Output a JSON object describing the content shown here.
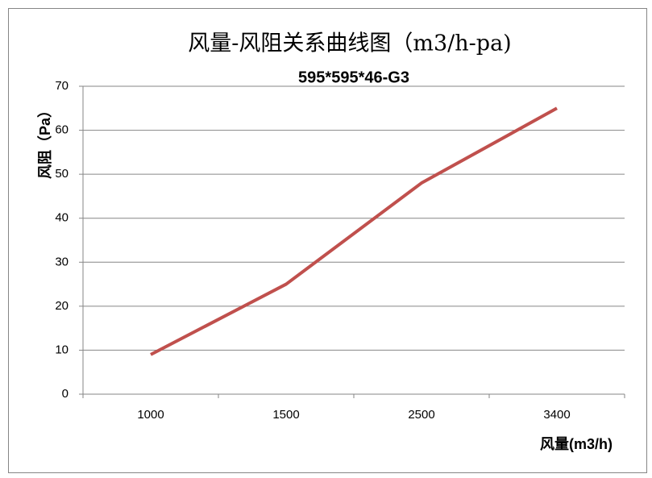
{
  "chart_data": {
    "type": "line",
    "title": "风量-风阻关系曲线图（m3/h-pa)",
    "subtitle": "595*595*46-G3",
    "x_label": "风量(m3/h)",
    "y_label": "风阻（Pa）",
    "categories": [
      "1000",
      "1500",
      "2500",
      "3400"
    ],
    "values": [
      9,
      25,
      48,
      65
    ],
    "color": "#c0504d",
    "ylim": [
      0,
      70
    ],
    "yticks": [
      0,
      10,
      20,
      30,
      40,
      50,
      60,
      70
    ],
    "grid": true
  }
}
